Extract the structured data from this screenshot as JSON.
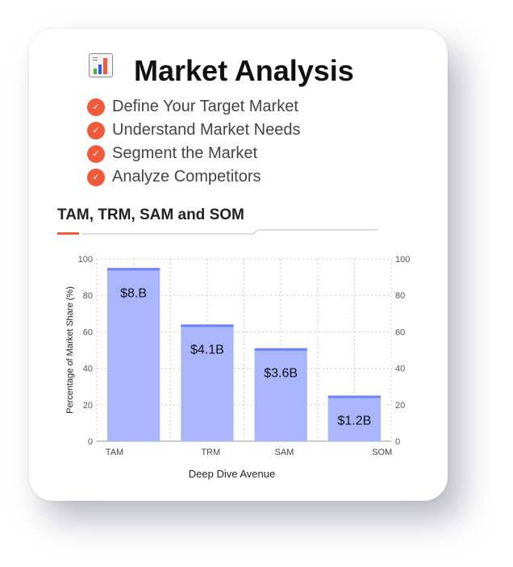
{
  "header": {
    "title": "Market Analysis",
    "icon": "bar-chart-icon"
  },
  "checklist": [
    "Define Your Target Market",
    "Understand Market Needs",
    "Segment the Market",
    "Analyze Competitors"
  ],
  "colors": {
    "accent": "#f05a3a",
    "bar_fill": "#a9b6fb",
    "bar_top": "#6c83f5"
  },
  "chart_data": {
    "type": "bar",
    "title": "TAM, TRM, SAM and SOM",
    "categories": [
      "TAM",
      "TRM",
      "SAM",
      "SOM"
    ],
    "values": [
      95,
      64,
      51,
      25
    ],
    "data_labels": [
      "$8.B",
      "$4.1B",
      "$3.6B",
      "$1.2B"
    ],
    "xlabel": "Deep Dive Avenue",
    "ylabel": "Percentage of Market Share (%)",
    "ylim": [
      0,
      100
    ],
    "yticks": [
      "0",
      "20",
      "40",
      "60",
      "80",
      "100"
    ],
    "secondary_yaxis": true,
    "grid": true
  }
}
